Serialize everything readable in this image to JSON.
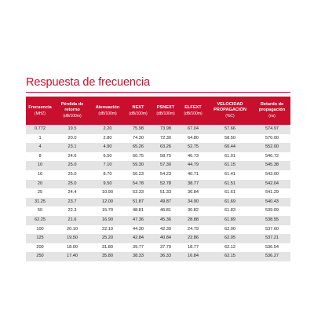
{
  "title": "Respuesta de frecuencia",
  "accent_color": "#c8102e",
  "table": {
    "headers": [
      {
        "label": "Frecuencia",
        "unit": "(MHZ)"
      },
      {
        "label": "Pérdida de retorno",
        "unit": "(dB/100m)"
      },
      {
        "label": "Atenuación",
        "unit": "(dB/100m)"
      },
      {
        "label": "NEXT",
        "unit": "(dB/100m)"
      },
      {
        "label": "PSNEXT",
        "unit": "(dB/100m)"
      },
      {
        "label": "ELFEXT",
        "unit": "(dB/100m)"
      },
      {
        "label": "VELOCIDAD PROPAGACIÓN",
        "unit": "(%C)"
      },
      {
        "label": "Retardo de propagación",
        "unit": "(ns)"
      }
    ],
    "rows": [
      [
        "0.772",
        "19.5",
        "2.20",
        "75.98",
        "73.98",
        "67.04",
        "57.66",
        "574.97"
      ],
      [
        "1",
        "20.0",
        "2.80",
        "74.30",
        "72.30",
        "64.80",
        "58.50",
        "570.00"
      ],
      [
        "4",
        "23.1",
        "4.90",
        "65.26",
        "63.26",
        "52.75",
        "60.44",
        "552.00"
      ],
      [
        "8",
        "24.6",
        "6.50",
        "60.75",
        "58.75",
        "46.73",
        "61.01",
        "546.72"
      ],
      [
        "10",
        "25.0",
        "7.10",
        "59.30",
        "57.30",
        "44.79",
        "61.15",
        "545.38"
      ],
      [
        "16",
        "25.0",
        "8.70",
        "56.23",
        "54.23",
        "40.71",
        "61.41",
        "543.00"
      ],
      [
        "20",
        "25.0",
        "9.50",
        "54.78",
        "52.78",
        "38.77",
        "61.51",
        "542.04"
      ],
      [
        "25",
        "24.4",
        "10.90",
        "53.33",
        "51.33",
        "36.84",
        "61.61",
        "541.29"
      ],
      [
        "31.25",
        "23.7",
        "12.00",
        "51.87",
        "49.87",
        "34.90",
        "61.69",
        "540.43"
      ],
      [
        "50",
        "22.3",
        "15.70",
        "48.81",
        "46.81",
        "30.82",
        "61.83",
        "539.09"
      ],
      [
        "62.25",
        "21.6",
        "16.90",
        "47.36",
        "45.36",
        "28.88",
        "61.89",
        "538.55"
      ],
      [
        "100",
        "20.10",
        "22.10",
        "44.30",
        "42.39",
        "24.79",
        "62.00",
        "537.60"
      ],
      [
        "125",
        "19.50",
        "25.20",
        "42.84",
        "40.84",
        "22.86",
        "62.05",
        "537.21"
      ],
      [
        "200",
        "18.00",
        "31.80",
        "39.77",
        "37.79",
        "18.77",
        "62.12",
        "536.54"
      ],
      [
        "250",
        "17.40",
        "35.80",
        "38.33",
        "36.33",
        "16.84",
        "62.15",
        "536.27"
      ]
    ]
  }
}
